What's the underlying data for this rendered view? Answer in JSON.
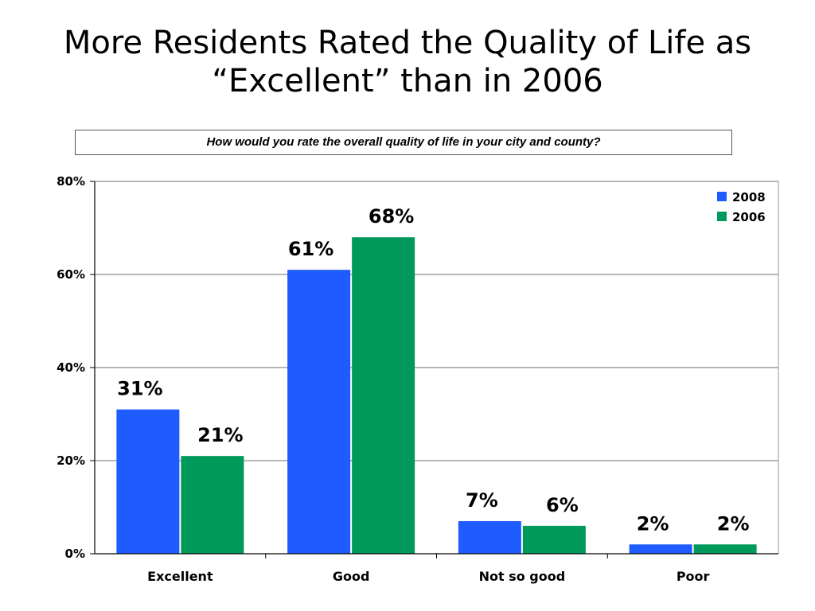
{
  "slide": {
    "title_line1": "More Residents Rated the Quality of Life as",
    "title_line2": "“Excellent” than in 2006",
    "question": "How would you rate the overall quality of life in your city and county?"
  },
  "chart_data": {
    "type": "bar",
    "categories": [
      "Excellent",
      "Good",
      "Not so good",
      "Poor"
    ],
    "series": [
      {
        "name": "2008",
        "color": "#1f5cff",
        "values": [
          31,
          61,
          7,
          2
        ]
      },
      {
        "name": "2006",
        "color": "#00995c",
        "values": [
          21,
          68,
          6,
          2
        ]
      }
    ],
    "data_labels": [
      [
        "31%",
        "61%",
        "7%",
        "2%"
      ],
      [
        "21%",
        "68%",
        "6%",
        "2%"
      ]
    ],
    "y_ticks": [
      {
        "value": 0,
        "label": "0%"
      },
      {
        "value": 20,
        "label": "20%"
      },
      {
        "value": 40,
        "label": "40%"
      },
      {
        "value": 60,
        "label": "60%"
      },
      {
        "value": 80,
        "label": "80%"
      }
    ],
    "ylim": [
      0,
      80
    ],
    "grid": true,
    "legend": "top-right"
  }
}
